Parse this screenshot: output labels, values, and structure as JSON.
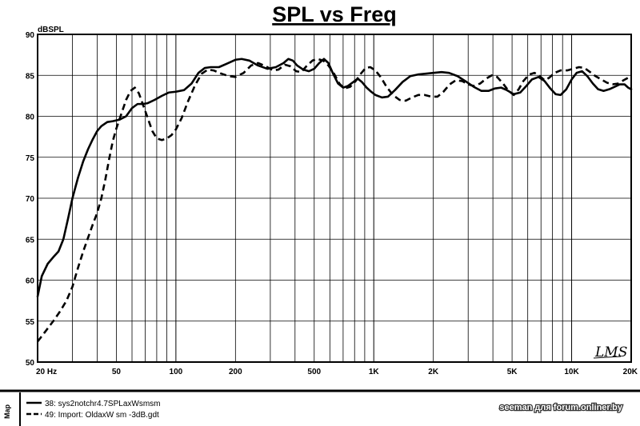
{
  "chart_data": {
    "type": "line",
    "title": "SPL vs Freq",
    "ylabel": "dBSPL",
    "xlabel": "",
    "x_scale": "log",
    "xlim": [
      20,
      20000
    ],
    "ylim": [
      50,
      90
    ],
    "y_ticks": [
      50,
      55,
      60,
      65,
      70,
      75,
      80,
      85,
      90
    ],
    "x_ticks": [
      {
        "value": 20,
        "label": "20  Hz"
      },
      {
        "value": 50,
        "label": "50"
      },
      {
        "value": 100,
        "label": "100"
      },
      {
        "value": 200,
        "label": "200"
      },
      {
        "value": 500,
        "label": "500"
      },
      {
        "value": 1000,
        "label": "1K"
      },
      {
        "value": 2000,
        "label": "2K"
      },
      {
        "value": 5000,
        "label": "5K"
      },
      {
        "value": 10000,
        "label": "10K"
      },
      {
        "value": 20000,
        "label": "20K"
      }
    ],
    "grid": true,
    "legend_position": "bottom-left",
    "series": [
      {
        "name": "38: sys2notchr4.7SPLaxWsmsm",
        "style": "solid",
        "points": [
          [
            20,
            58
          ],
          [
            21,
            60.5
          ],
          [
            22.5,
            62
          ],
          [
            24,
            62.8
          ],
          [
            25.5,
            63.5
          ],
          [
            27,
            65
          ],
          [
            28.5,
            67.5
          ],
          [
            30,
            70
          ],
          [
            32,
            72.5
          ],
          [
            34,
            74.5
          ],
          [
            36,
            76
          ],
          [
            38,
            77.2
          ],
          [
            40,
            78.2
          ],
          [
            42,
            78.8
          ],
          [
            45,
            79.3
          ],
          [
            48,
            79.4
          ],
          [
            52,
            79.6
          ],
          [
            56,
            80
          ],
          [
            60,
            81
          ],
          [
            64,
            81.5
          ],
          [
            68,
            81.5
          ],
          [
            72,
            81.6
          ],
          [
            78,
            82
          ],
          [
            85,
            82.5
          ],
          [
            92,
            82.9
          ],
          [
            100,
            83
          ],
          [
            110,
            83.2
          ],
          [
            120,
            84
          ],
          [
            130,
            85.3
          ],
          [
            140,
            85.9
          ],
          [
            150,
            86
          ],
          [
            165,
            86
          ],
          [
            180,
            86.4
          ],
          [
            200,
            86.9
          ],
          [
            215,
            87
          ],
          [
            235,
            86.8
          ],
          [
            260,
            86.2
          ],
          [
            290,
            85.8
          ],
          [
            320,
            86
          ],
          [
            350,
            86.5
          ],
          [
            370,
            87
          ],
          [
            390,
            86.8
          ],
          [
            410,
            86.2
          ],
          [
            440,
            85.7
          ],
          [
            470,
            85.5
          ],
          [
            500,
            85.8
          ],
          [
            530,
            86.5
          ],
          [
            560,
            87
          ],
          [
            590,
            86.5
          ],
          [
            620,
            85.3
          ],
          [
            660,
            84
          ],
          [
            700,
            83.5
          ],
          [
            740,
            83.7
          ],
          [
            790,
            84.2
          ],
          [
            830,
            84.6
          ],
          [
            870,
            84.2
          ],
          [
            920,
            83.5
          ],
          [
            970,
            83
          ],
          [
            1020,
            82.6
          ],
          [
            1100,
            82.3
          ],
          [
            1180,
            82.4
          ],
          [
            1280,
            83.2
          ],
          [
            1400,
            84.2
          ],
          [
            1530,
            84.9
          ],
          [
            1670,
            85.1
          ],
          [
            1830,
            85.2
          ],
          [
            2000,
            85.3
          ],
          [
            2200,
            85.4
          ],
          [
            2400,
            85.3
          ],
          [
            2650,
            84.9
          ],
          [
            2900,
            84.3
          ],
          [
            3200,
            83.6
          ],
          [
            3500,
            83.1
          ],
          [
            3800,
            83.1
          ],
          [
            4100,
            83.4
          ],
          [
            4400,
            83.5
          ],
          [
            4700,
            83.2
          ],
          [
            5100,
            82.7
          ],
          [
            5500,
            82.9
          ],
          [
            5900,
            83.7
          ],
          [
            6300,
            84.5
          ],
          [
            6800,
            84.8
          ],
          [
            7300,
            84.3
          ],
          [
            7800,
            83.4
          ],
          [
            8300,
            82.7
          ],
          [
            8800,
            82.6
          ],
          [
            9400,
            83.3
          ],
          [
            10000,
            84.5
          ],
          [
            10600,
            85.3
          ],
          [
            11300,
            85.5
          ],
          [
            12000,
            84.9
          ],
          [
            12800,
            84
          ],
          [
            13600,
            83.3
          ],
          [
            14500,
            83.1
          ],
          [
            15500,
            83.3
          ],
          [
            16500,
            83.6
          ],
          [
            17500,
            83.9
          ],
          [
            18500,
            83.9
          ],
          [
            19300,
            83.5
          ],
          [
            20000,
            83.3
          ]
        ]
      },
      {
        "name": "49: Import: OldaxW sm -3dB.gdt",
        "style": "dashed",
        "points": [
          [
            20,
            52.5
          ],
          [
            22,
            53.8
          ],
          [
            24,
            55
          ],
          [
            26,
            56.2
          ],
          [
            28,
            57.5
          ],
          [
            30,
            59.2
          ],
          [
            32,
            61.5
          ],
          [
            34,
            63.5
          ],
          [
            36,
            65.2
          ],
          [
            38,
            66.8
          ],
          [
            40,
            68.2
          ],
          [
            42,
            70
          ],
          [
            44,
            72.3
          ],
          [
            46,
            74.8
          ],
          [
            48,
            77
          ],
          [
            50,
            78.5
          ],
          [
            53,
            80.3
          ],
          [
            56,
            82
          ],
          [
            59,
            83.1
          ],
          [
            62,
            83.5
          ],
          [
            65,
            82.8
          ],
          [
            68,
            81.5
          ],
          [
            72,
            79.8
          ],
          [
            76,
            78.2
          ],
          [
            80,
            77.3
          ],
          [
            85,
            77.1
          ],
          [
            90,
            77.3
          ],
          [
            95,
            77.7
          ],
          [
            100,
            78.4
          ],
          [
            107,
            79.8
          ],
          [
            115,
            81.8
          ],
          [
            125,
            83.8
          ],
          [
            135,
            85.2
          ],
          [
            145,
            85.7
          ],
          [
            155,
            85.6
          ],
          [
            170,
            85.2
          ],
          [
            185,
            84.9
          ],
          [
            200,
            84.8
          ],
          [
            220,
            85.3
          ],
          [
            240,
            86.2
          ],
          [
            260,
            86.5
          ],
          [
            285,
            86.1
          ],
          [
            310,
            85.6
          ],
          [
            330,
            85.7
          ],
          [
            355,
            86.3
          ],
          [
            380,
            86.1
          ],
          [
            405,
            85.5
          ],
          [
            430,
            85.4
          ],
          [
            460,
            86.2
          ],
          [
            490,
            86.8
          ],
          [
            520,
            87
          ],
          [
            555,
            86.8
          ],
          [
            590,
            86.2
          ],
          [
            630,
            85.2
          ],
          [
            670,
            84
          ],
          [
            710,
            83.4
          ],
          [
            760,
            83.6
          ],
          [
            810,
            84.3
          ],
          [
            860,
            85.2
          ],
          [
            910,
            85.9
          ],
          [
            960,
            86
          ],
          [
            1020,
            85.6
          ],
          [
            1090,
            84.7
          ],
          [
            1160,
            83.6
          ],
          [
            1250,
            82.6
          ],
          [
            1350,
            82
          ],
          [
            1450,
            81.9
          ],
          [
            1560,
            82.3
          ],
          [
            1680,
            82.6
          ],
          [
            1810,
            82.6
          ],
          [
            1950,
            82.4
          ],
          [
            2100,
            82.4
          ],
          [
            2250,
            83
          ],
          [
            2420,
            83.9
          ],
          [
            2600,
            84.4
          ],
          [
            2800,
            84.3
          ],
          [
            3000,
            83.9
          ],
          [
            3200,
            83.7
          ],
          [
            3450,
            84
          ],
          [
            3700,
            84.6
          ],
          [
            3950,
            85
          ],
          [
            4200,
            84.8
          ],
          [
            4500,
            84
          ],
          [
            4800,
            83.1
          ],
          [
            5100,
            82.6
          ],
          [
            5400,
            83.3
          ],
          [
            5700,
            84.3
          ],
          [
            6100,
            85.1
          ],
          [
            6500,
            85.3
          ],
          [
            6900,
            84.9
          ],
          [
            7300,
            84.4
          ],
          [
            7700,
            84.7
          ],
          [
            8200,
            85.3
          ],
          [
            8800,
            85.6
          ],
          [
            9500,
            85.6
          ],
          [
            10200,
            85.8
          ],
          [
            10900,
            86
          ],
          [
            11600,
            85.9
          ],
          [
            12400,
            85.4
          ],
          [
            13200,
            84.9
          ],
          [
            14100,
            84.5
          ],
          [
            15100,
            84.1
          ],
          [
            16100,
            83.9
          ],
          [
            17200,
            84
          ],
          [
            18300,
            84.4
          ],
          [
            19300,
            84.7
          ],
          [
            20000,
            84.9
          ]
        ]
      }
    ],
    "logo": "LMS"
  },
  "side_label": "Map",
  "watermark": "seeman для forum.onliner.by",
  "colors": {
    "background": "#ffffff",
    "lines": "#000000",
    "grid": "#000000"
  }
}
